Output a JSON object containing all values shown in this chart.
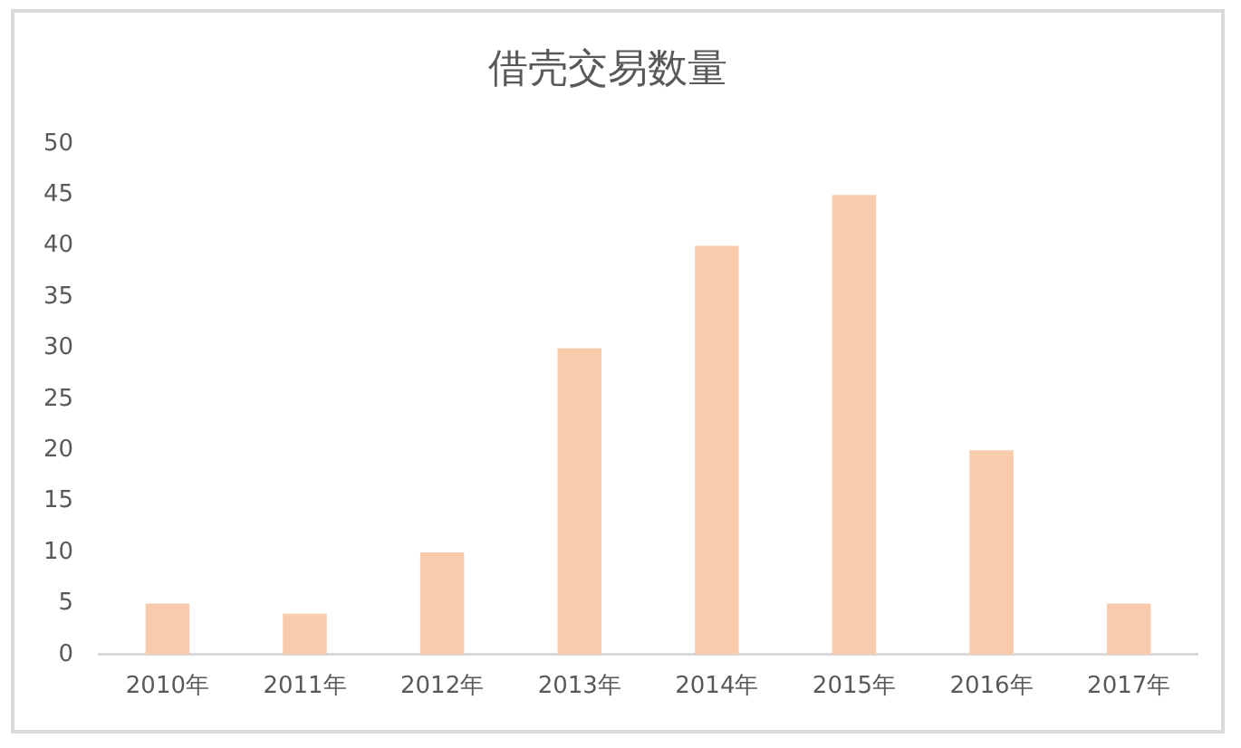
{
  "chart_data": {
    "type": "bar",
    "title": "借壳交易数量",
    "categories": [
      "2010年",
      "2011年",
      "2012年",
      "2013年",
      "2014年",
      "2015年",
      "2016年",
      "2017年"
    ],
    "values": [
      5,
      4,
      10,
      30,
      40,
      45,
      20,
      5
    ],
    "color": "#f8cbad",
    "ylim": [
      0,
      50
    ],
    "yticks": [
      0,
      5,
      10,
      15,
      20,
      25,
      30,
      35,
      40,
      45,
      50
    ],
    "grid": false
  }
}
